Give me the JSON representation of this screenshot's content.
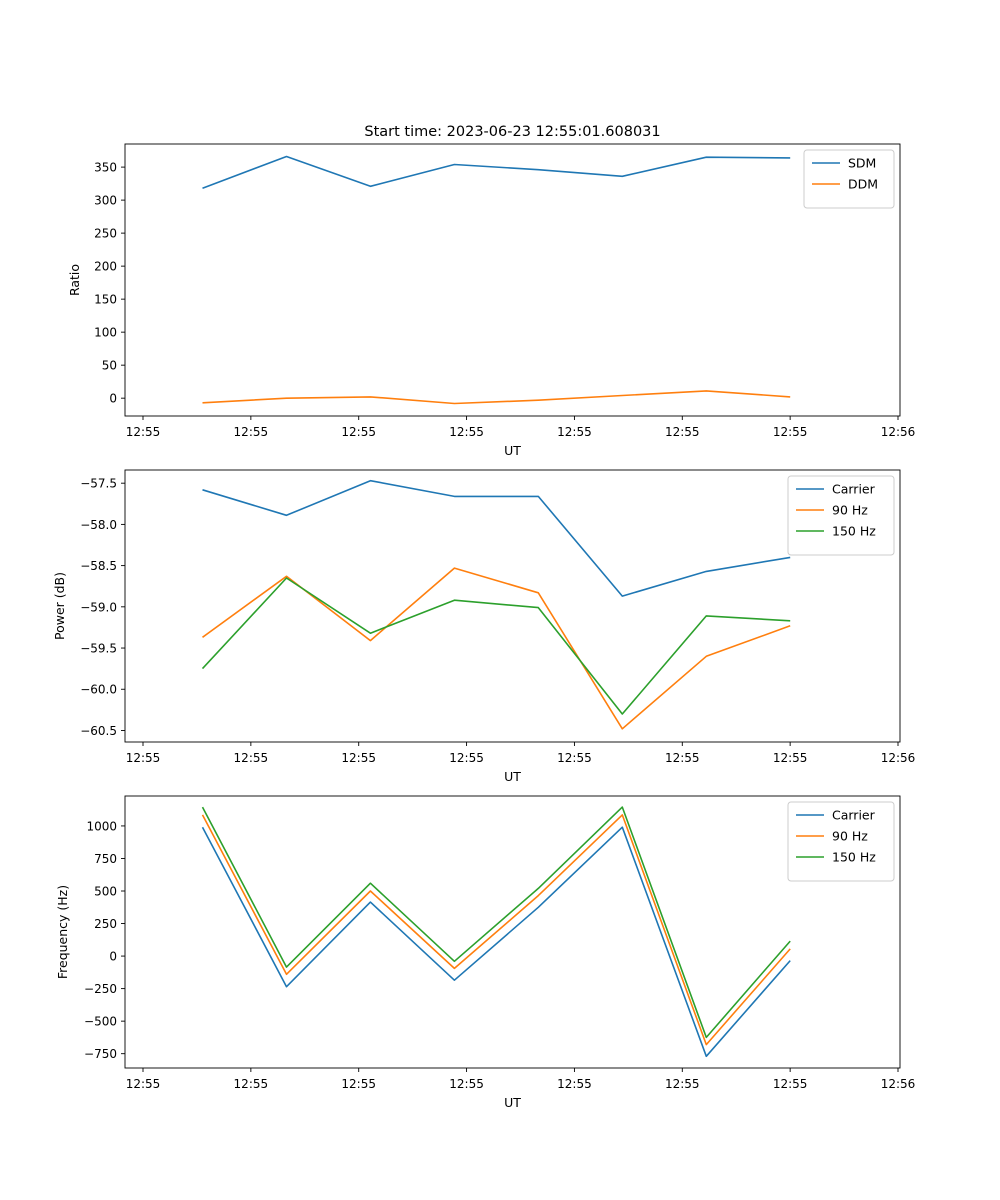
{
  "title": "Start time: 2023-06-23 12:55:01.608031",
  "colors": {
    "blue": "#1f77b4",
    "orange": "#ff7f0e",
    "green": "#2ca02c"
  },
  "chart_data": [
    {
      "type": "line",
      "xlabel": "UT",
      "ylabel": "Ratio",
      "x_tick_labels": [
        "12:55",
        "12:55",
        "12:55",
        "12:55",
        "12:55",
        "12:55",
        "12:55",
        "12:56"
      ],
      "x": [
        0.6,
        1.25,
        1.9,
        2.55,
        3.2,
        3.85,
        4.5,
        5.15
      ],
      "xlim": [
        0,
        6
      ],
      "ylim": [
        -27,
        385
      ],
      "yticks": [
        0,
        50,
        100,
        150,
        200,
        250,
        300,
        350
      ],
      "legend_position": "upper right",
      "series": [
        {
          "name": "SDM",
          "color": "#1f77b4",
          "values": [
            318,
            366,
            321,
            354,
            346,
            336,
            365,
            364
          ]
        },
        {
          "name": "DDM",
          "color": "#ff7f0e",
          "values": [
            -7,
            0,
            2,
            -8,
            -3,
            4,
            11,
            2
          ]
        }
      ]
    },
    {
      "type": "line",
      "xlabel": "UT",
      "ylabel": "Power (dB)",
      "x_tick_labels": [
        "12:55",
        "12:55",
        "12:55",
        "12:55",
        "12:55",
        "12:55",
        "12:55",
        "12:56"
      ],
      "x": [
        0.6,
        1.25,
        1.9,
        2.55,
        3.2,
        3.85,
        4.5,
        5.15
      ],
      "xlim": [
        0,
        6
      ],
      "ylim": [
        -60.64,
        -57.34
      ],
      "yticks": [
        -60.5,
        -60.0,
        -59.5,
        -59.0,
        -58.5,
        -58.0,
        -57.5
      ],
      "ytick_labels": [
        "−60.5",
        "−60.0",
        "−59.5",
        "−59.0",
        "−58.5",
        "−58.0",
        "−57.5"
      ],
      "legend_position": "upper right",
      "series": [
        {
          "name": "Carrier",
          "color": "#1f77b4",
          "values": [
            -57.58,
            -57.89,
            -57.47,
            -57.66,
            -57.66,
            -58.87,
            -58.57,
            -58.4
          ]
        },
        {
          "name": "90 Hz",
          "color": "#ff7f0e",
          "values": [
            -59.37,
            -58.63,
            -59.41,
            -58.53,
            -58.83,
            -60.48,
            -59.6,
            -59.23
          ]
        },
        {
          "name": "150 Hz",
          "color": "#2ca02c",
          "values": [
            -59.75,
            -58.65,
            -59.32,
            -58.92,
            -59.01,
            -60.3,
            -59.11,
            -59.17
          ]
        }
      ]
    },
    {
      "type": "line",
      "xlabel": "UT",
      "ylabel": "Frequency (Hz)",
      "x_tick_labels": [
        "12:55",
        "12:55",
        "12:55",
        "12:55",
        "12:55",
        "12:55",
        "12:55",
        "12:56"
      ],
      "x": [
        0.6,
        1.25,
        1.9,
        2.55,
        3.2,
        3.85,
        4.5,
        5.15
      ],
      "xlim": [
        0,
        6
      ],
      "ylim": [
        -860,
        1230
      ],
      "yticks": [
        -750,
        -500,
        -250,
        0,
        250,
        500,
        750,
        1000
      ],
      "ytick_labels": [
        "−750",
        "−500",
        "−250",
        "0",
        "250",
        "500",
        "750",
        "1000"
      ],
      "legend_position": "upper right",
      "series": [
        {
          "name": "Carrier",
          "color": "#1f77b4",
          "values": [
            990,
            -235,
            415,
            -185,
            375,
            990,
            -770,
            -35
          ]
        },
        {
          "name": "90 Hz",
          "color": "#ff7f0e",
          "values": [
            1085,
            -140,
            500,
            -95,
            465,
            1085,
            -680,
            55
          ]
        },
        {
          "name": "150 Hz",
          "color": "#2ca02c",
          "values": [
            1145,
            -85,
            560,
            -40,
            520,
            1145,
            -625,
            115
          ]
        }
      ]
    }
  ]
}
